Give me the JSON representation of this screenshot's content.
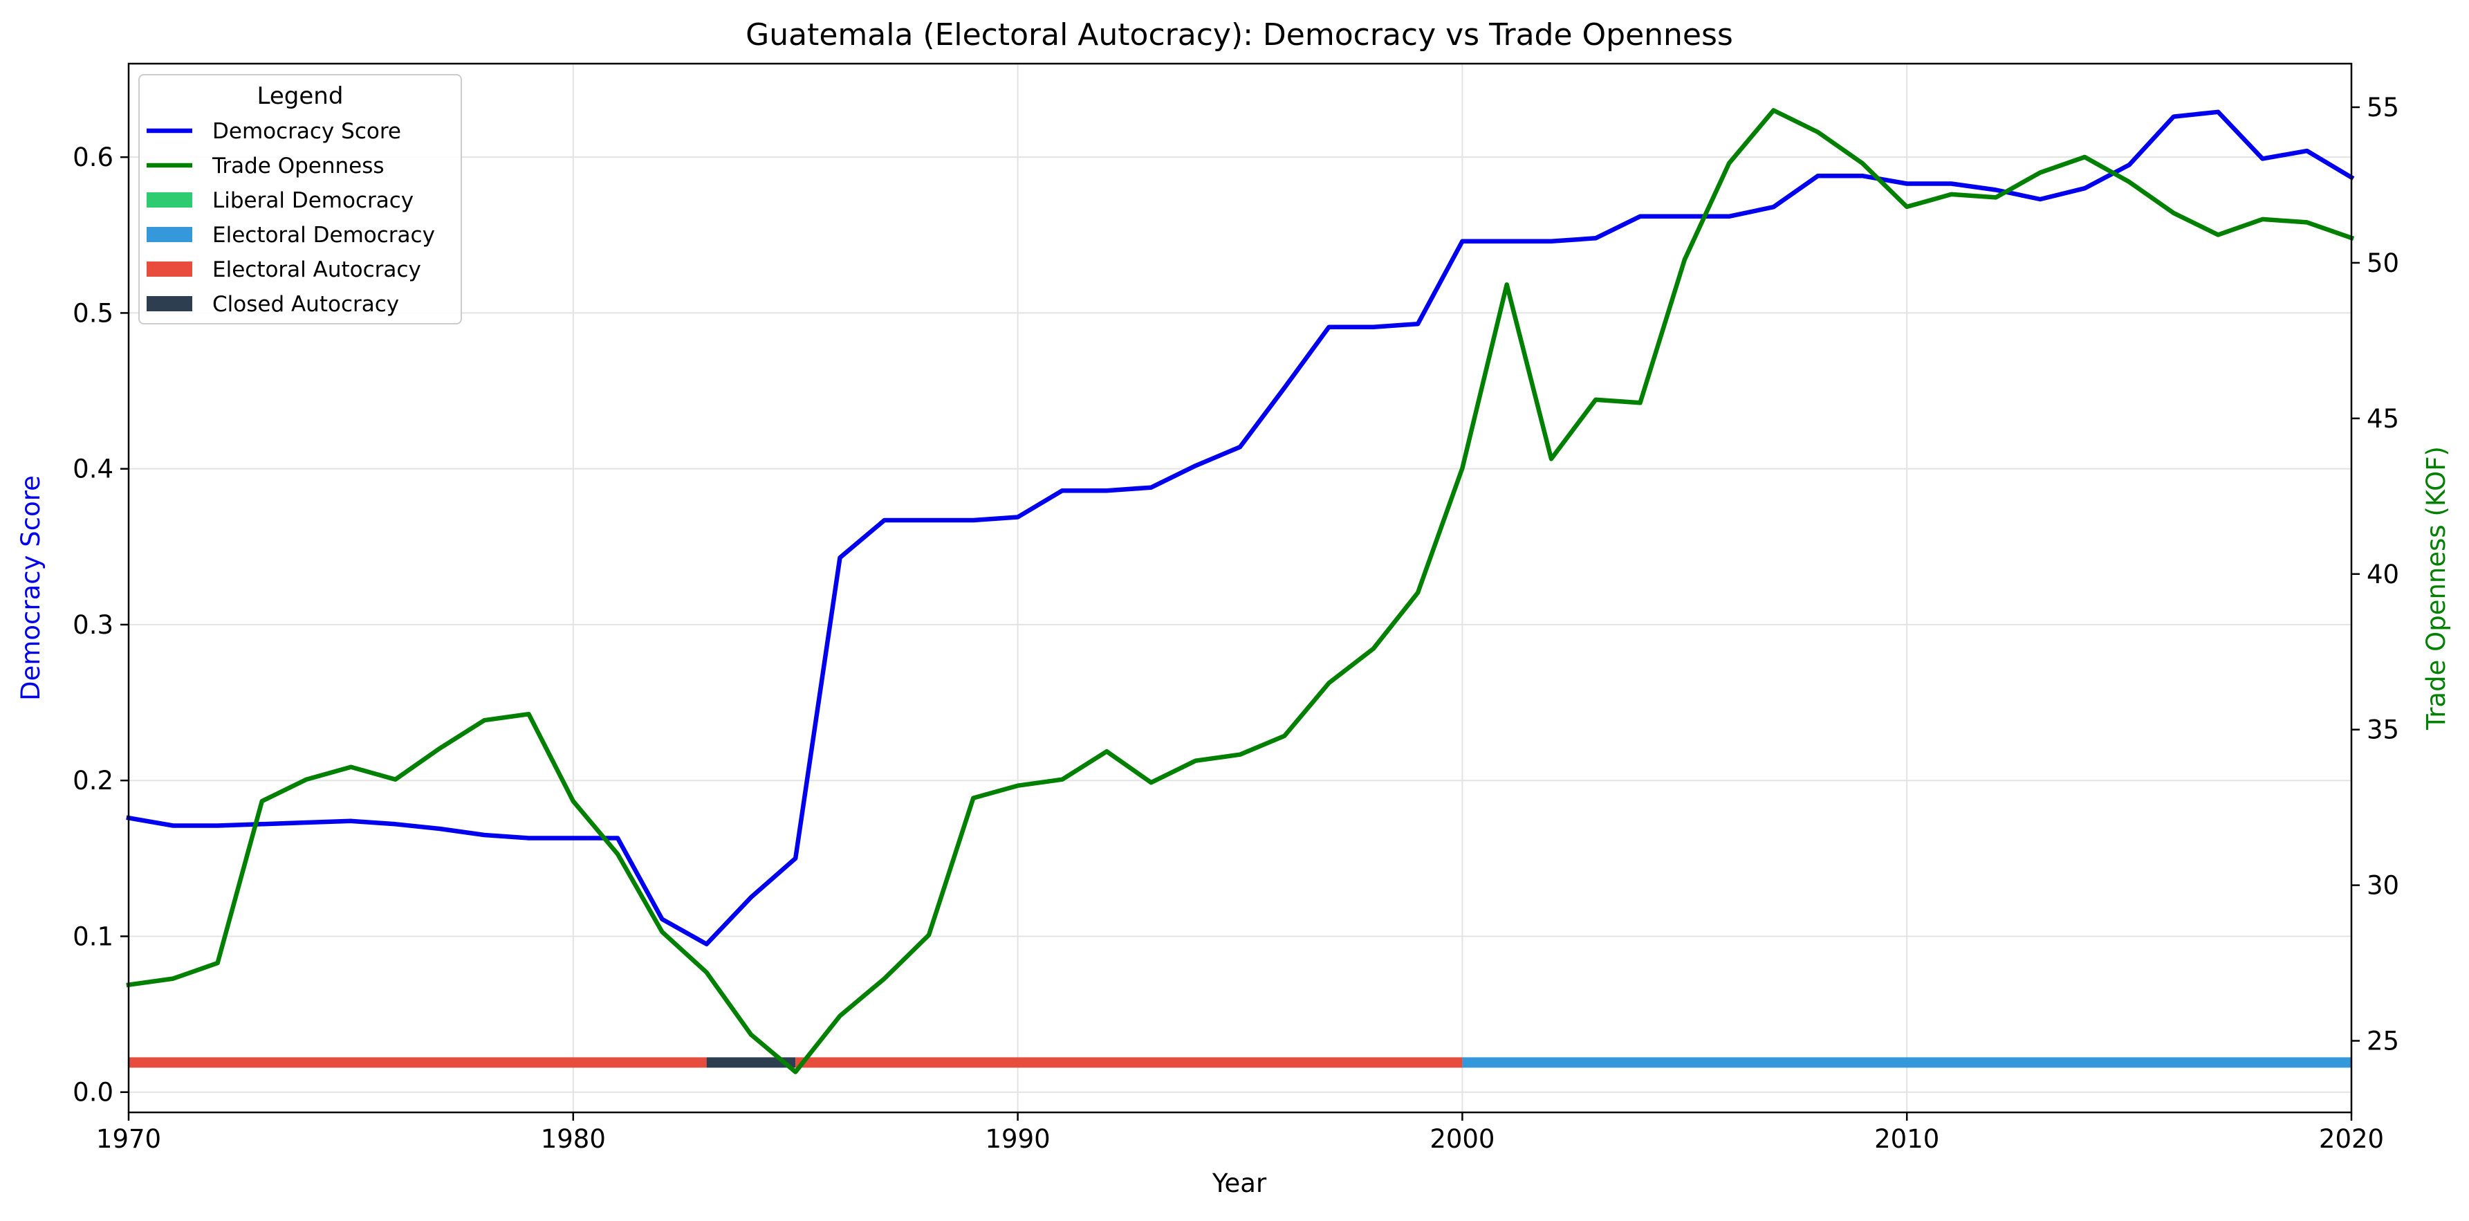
{
  "chart_data": {
    "type": "line",
    "title": "Guatemala (Electoral Autocracy): Democracy vs Trade Openness",
    "xlabel": "Year",
    "ylabel_left": "Democracy Score",
    "ylabel_right": "Trade Openness (KOF)",
    "xlim": [
      1970,
      2020
    ],
    "ylim_left": [
      -0.013,
      0.66
    ],
    "ylim_right": [
      22.7,
      56.4
    ],
    "x_ticks": [
      1970,
      1980,
      1990,
      2000,
      2010,
      2020
    ],
    "y_ticks_left": [
      "0.0",
      "0.1",
      "0.2",
      "0.3",
      "0.4",
      "0.5",
      "0.6"
    ],
    "y_ticks_right": [
      25,
      30,
      35,
      40,
      45,
      50,
      55
    ],
    "grid": true,
    "legend": {
      "title": "Legend",
      "placement": "top-left",
      "entries": [
        {
          "label": "Democracy Score",
          "kind": "line",
          "color": "#0000ee"
        },
        {
          "label": "Trade Openness",
          "kind": "line",
          "color": "#008000"
        },
        {
          "label": "Liberal Democracy",
          "kind": "patch",
          "color": "#2ecc71"
        },
        {
          "label": "Electoral Democracy",
          "kind": "patch",
          "color": "#3498db"
        },
        {
          "label": "Electoral Autocracy",
          "kind": "patch",
          "color": "#e74c3c"
        },
        {
          "label": "Closed Autocracy",
          "kind": "patch",
          "color": "#2c3e50"
        }
      ]
    },
    "x": [
      1970,
      1971,
      1972,
      1973,
      1974,
      1975,
      1976,
      1977,
      1978,
      1979,
      1980,
      1981,
      1982,
      1983,
      1984,
      1985,
      1986,
      1987,
      1988,
      1989,
      1990,
      1991,
      1992,
      1993,
      1994,
      1995,
      1996,
      1997,
      1998,
      1999,
      2000,
      2001,
      2002,
      2003,
      2004,
      2005,
      2006,
      2007,
      2008,
      2009,
      2010,
      2011,
      2012,
      2013,
      2014,
      2015,
      2016,
      2017,
      2018,
      2019,
      2020
    ],
    "series": [
      {
        "name": "Democracy Score",
        "axis": "left",
        "color": "#0000ee",
        "values": [
          0.176,
          0.171,
          0.171,
          0.172,
          0.173,
          0.174,
          0.172,
          0.169,
          0.165,
          0.163,
          0.163,
          0.163,
          0.111,
          0.095,
          0.125,
          0.15,
          0.343,
          0.367,
          0.367,
          0.367,
          0.369,
          0.386,
          0.386,
          0.388,
          0.402,
          0.414,
          0.452,
          0.491,
          0.491,
          0.493,
          0.546,
          0.546,
          0.546,
          0.548,
          0.562,
          0.562,
          0.562,
          0.568,
          0.588,
          0.588,
          0.583,
          0.583,
          0.579,
          0.573,
          0.58,
          0.595,
          0.626,
          0.629,
          0.599,
          0.604,
          0.587
        ]
      },
      {
        "name": "Trade Openness",
        "axis": "right",
        "color": "#008000",
        "values": [
          26.8,
          27.0,
          27.5,
          32.7,
          33.4,
          33.8,
          33.4,
          34.4,
          35.3,
          35.5,
          32.7,
          31.0,
          28.5,
          27.2,
          25.2,
          24.0,
          25.8,
          27.0,
          28.4,
          32.8,
          33.2,
          33.4,
          34.3,
          33.3,
          34.0,
          34.2,
          34.8,
          36.5,
          37.6,
          39.4,
          43.4,
          49.3,
          43.7,
          45.6,
          45.5,
          50.1,
          53.2,
          54.9,
          54.2,
          53.2,
          51.8,
          52.2,
          52.1,
          52.9,
          53.4,
          52.6,
          51.6,
          50.9,
          51.4,
          51.3,
          50.8
        ]
      }
    ],
    "regime_bands": [
      {
        "regime": "Electoral Autocracy",
        "start": 1970,
        "end": 1983,
        "color": "#e74c3c"
      },
      {
        "regime": "Closed Autocracy",
        "start": 1983,
        "end": 1985,
        "color": "#2c3e50"
      },
      {
        "regime": "Electoral Autocracy",
        "start": 1985,
        "end": 2000,
        "color": "#e74c3c"
      },
      {
        "regime": "Electoral Democracy",
        "start": 2000,
        "end": 2020,
        "color": "#3498db"
      }
    ],
    "regime_band_level": 0.019
  }
}
